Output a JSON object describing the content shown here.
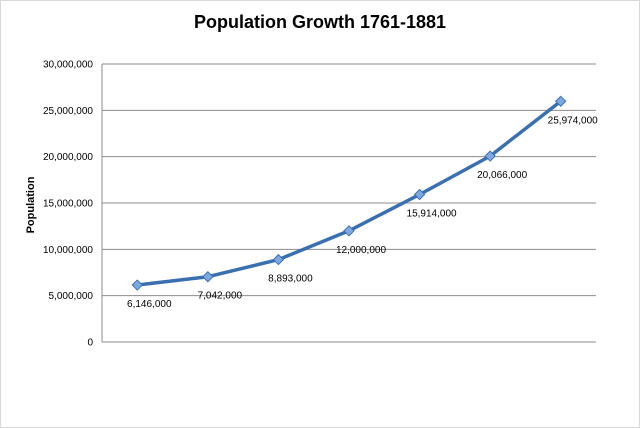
{
  "chart_data": {
    "type": "line",
    "title": "Population Growth 1761-1881",
    "ylabel": "Population",
    "xlabel": "",
    "ylim": [
      0,
      30000000
    ],
    "yticks": [
      "0",
      "5,000,000",
      "10,000,000",
      "15,000,000",
      "20,000,000",
      "25,000,000",
      "30,000,000"
    ],
    "grid": true,
    "line_color": "#3a6fb0",
    "marker_color": "#7fa8e0",
    "values": [
      6146000,
      7042000,
      8893000,
      12000000,
      15914000,
      20066000,
      25974000
    ],
    "data_labels": [
      "6,146,000",
      "7,042,000",
      "8,893,000",
      "12,000,000",
      "15,914,000",
      "20,066,000",
      "25,974,000"
    ]
  }
}
